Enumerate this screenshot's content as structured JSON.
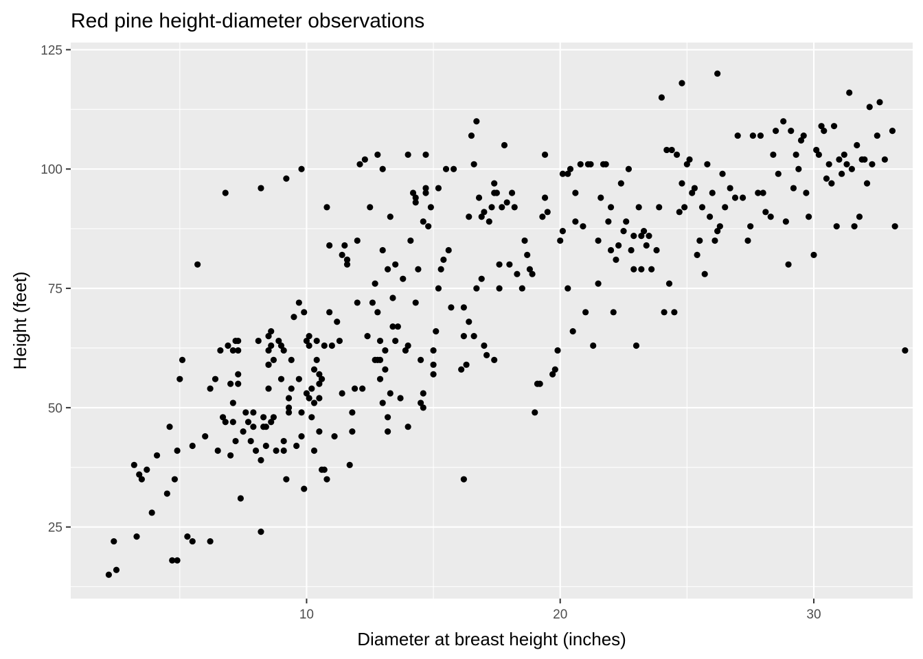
{
  "chart_data": {
    "type": "scatter",
    "title": "Red pine height-diameter observations",
    "xlabel": "Diameter at breast height (inches)",
    "ylabel": "Height (feet)",
    "xlim": [
      0.7,
      33.9
    ],
    "ylim": [
      10,
      126.5
    ],
    "x_ticks": [
      10,
      20,
      30
    ],
    "y_ticks": [
      25,
      50,
      75,
      100,
      125
    ],
    "grid": true,
    "legend": "none",
    "colors": {
      "panel": "#ebebeb",
      "point": "#000000",
      "grid": "#ffffff",
      "tick_text": "#4d4d4d"
    },
    "points": [
      [
        2.2,
        15
      ],
      [
        2.5,
        16
      ],
      [
        2.4,
        22
      ],
      [
        3.3,
        23
      ],
      [
        3.2,
        38
      ],
      [
        3.4,
        36
      ],
      [
        3.5,
        35
      ],
      [
        3.7,
        37
      ],
      [
        3.9,
        28
      ],
      [
        4.1,
        40
      ],
      [
        4.5,
        32
      ],
      [
        4.6,
        46
      ],
      [
        4.7,
        18
      ],
      [
        4.8,
        35
      ],
      [
        4.9,
        18
      ],
      [
        4.9,
        41
      ],
      [
        5.0,
        56
      ],
      [
        5.1,
        60
      ],
      [
        5.3,
        23
      ],
      [
        5.5,
        22
      ],
      [
        5.5,
        42
      ],
      [
        5.7,
        80
      ],
      [
        6.0,
        44
      ],
      [
        6.2,
        22
      ],
      [
        6.2,
        54
      ],
      [
        6.4,
        56
      ],
      [
        6.5,
        41
      ],
      [
        6.6,
        62
      ],
      [
        6.7,
        48
      ],
      [
        6.8,
        47
      ],
      [
        6.9,
        63
      ],
      [
        6.8,
        95
      ],
      [
        7.0,
        55
      ],
      [
        7.0,
        40
      ],
      [
        7.1,
        62
      ],
      [
        7.1,
        51
      ],
      [
        7.2,
        64
      ],
      [
        7.1,
        47
      ],
      [
        7.2,
        43
      ],
      [
        7.3,
        64
      ],
      [
        7.3,
        62
      ],
      [
        7.3,
        55
      ],
      [
        7.3,
        57
      ],
      [
        7.4,
        31
      ],
      [
        7.5,
        45
      ],
      [
        7.6,
        49
      ],
      [
        7.7,
        47
      ],
      [
        7.8,
        43
      ],
      [
        7.9,
        49
      ],
      [
        7.9,
        46
      ],
      [
        8.0,
        41
      ],
      [
        8.1,
        64
      ],
      [
        8.2,
        39
      ],
      [
        8.2,
        24
      ],
      [
        8.2,
        96
      ],
      [
        8.3,
        48
      ],
      [
        8.3,
        46
      ],
      [
        8.4,
        42
      ],
      [
        8.4,
        46
      ],
      [
        8.5,
        65
      ],
      [
        8.5,
        62
      ],
      [
        8.5,
        59
      ],
      [
        8.5,
        59
      ],
      [
        8.5,
        54
      ],
      [
        8.6,
        63
      ],
      [
        8.6,
        66
      ],
      [
        8.7,
        60
      ],
      [
        8.6,
        47
      ],
      [
        8.7,
        48
      ],
      [
        8.8,
        41
      ],
      [
        8.9,
        64
      ],
      [
        9.0,
        63
      ],
      [
        9.0,
        56
      ],
      [
        9.1,
        41
      ],
      [
        9.1,
        43
      ],
      [
        9.1,
        62
      ],
      [
        9.2,
        98
      ],
      [
        9.2,
        35
      ],
      [
        9.3,
        52
      ],
      [
        9.3,
        49
      ],
      [
        9.3,
        50
      ],
      [
        9.4,
        54
      ],
      [
        9.4,
        60
      ],
      [
        9.5,
        69
      ],
      [
        9.6,
        42
      ],
      [
        9.7,
        56
      ],
      [
        9.7,
        72
      ],
      [
        9.8,
        100
      ],
      [
        9.8,
        44
      ],
      [
        9.8,
        49
      ],
      [
        9.9,
        70
      ],
      [
        9.9,
        33
      ],
      [
        10.0,
        64
      ],
      [
        10.0,
        53
      ],
      [
        10.1,
        65
      ],
      [
        10.1,
        63
      ],
      [
        10.1,
        52
      ],
      [
        10.2,
        54
      ],
      [
        10.2,
        48
      ],
      [
        10.3,
        58
      ],
      [
        10.3,
        51
      ],
      [
        10.3,
        41
      ],
      [
        10.4,
        60
      ],
      [
        10.4,
        64
      ],
      [
        10.5,
        55
      ],
      [
        10.5,
        57
      ],
      [
        10.5,
        52
      ],
      [
        10.5,
        45
      ],
      [
        10.6,
        37
      ],
      [
        10.6,
        56
      ],
      [
        10.7,
        63
      ],
      [
        10.7,
        37
      ],
      [
        10.8,
        35
      ],
      [
        10.8,
        92
      ],
      [
        10.9,
        70
      ],
      [
        10.9,
        84
      ],
      [
        11.0,
        63
      ],
      [
        11.1,
        44
      ],
      [
        11.2,
        68
      ],
      [
        11.3,
        64
      ],
      [
        11.4,
        82
      ],
      [
        11.4,
        53
      ],
      [
        11.5,
        84
      ],
      [
        11.6,
        80
      ],
      [
        11.6,
        81
      ],
      [
        11.6,
        81
      ],
      [
        11.7,
        38
      ],
      [
        11.8,
        45
      ],
      [
        11.8,
        49
      ],
      [
        11.9,
        54
      ],
      [
        12.0,
        72
      ],
      [
        12.0,
        85
      ],
      [
        12.1,
        101
      ],
      [
        12.2,
        54
      ],
      [
        12.3,
        102
      ],
      [
        12.4,
        65
      ],
      [
        12.5,
        92
      ],
      [
        12.6,
        72
      ],
      [
        12.7,
        60
      ],
      [
        12.7,
        76
      ],
      [
        12.8,
        103
      ],
      [
        12.8,
        60
      ],
      [
        12.8,
        70
      ],
      [
        12.9,
        64
      ],
      [
        12.9,
        60
      ],
      [
        12.9,
        56
      ],
      [
        13.0,
        51
      ],
      [
        13.0,
        83
      ],
      [
        13.0,
        100
      ],
      [
        13.1,
        58
      ],
      [
        13.1,
        62
      ],
      [
        13.2,
        79
      ],
      [
        13.2,
        48
      ],
      [
        13.2,
        45
      ],
      [
        13.3,
        90
      ],
      [
        13.3,
        53
      ],
      [
        13.4,
        67
      ],
      [
        13.4,
        73
      ],
      [
        13.5,
        64
      ],
      [
        13.5,
        80
      ],
      [
        13.6,
        67
      ],
      [
        13.7,
        52
      ],
      [
        13.8,
        77
      ],
      [
        13.9,
        62
      ],
      [
        14.0,
        103
      ],
      [
        14.0,
        63
      ],
      [
        14.0,
        46
      ],
      [
        14.1,
        85
      ],
      [
        14.2,
        95
      ],
      [
        14.3,
        72
      ],
      [
        14.3,
        94
      ],
      [
        14.3,
        93
      ],
      [
        14.4,
        79
      ],
      [
        14.5,
        51
      ],
      [
        14.5,
        60
      ],
      [
        14.6,
        53
      ],
      [
        14.6,
        89
      ],
      [
        14.6,
        50
      ],
      [
        14.7,
        103
      ],
      [
        14.7,
        95
      ],
      [
        14.7,
        96
      ],
      [
        14.8,
        88
      ],
      [
        14.9,
        92
      ],
      [
        15.0,
        57
      ],
      [
        15.0,
        59
      ],
      [
        15.0,
        62
      ],
      [
        15.1,
        66
      ],
      [
        15.2,
        75
      ],
      [
        15.2,
        96
      ],
      [
        15.3,
        79
      ],
      [
        15.4,
        81
      ],
      [
        15.5,
        100
      ],
      [
        15.6,
        83
      ],
      [
        15.7,
        71
      ],
      [
        15.8,
        100
      ],
      [
        16.1,
        58
      ],
      [
        16.2,
        71
      ],
      [
        16.2,
        65
      ],
      [
        16.2,
        35
      ],
      [
        16.3,
        59
      ],
      [
        16.4,
        90
      ],
      [
        16.4,
        68
      ],
      [
        16.5,
        107
      ],
      [
        16.6,
        65
      ],
      [
        16.6,
        101
      ],
      [
        16.7,
        75
      ],
      [
        16.7,
        110
      ],
      [
        16.8,
        94
      ],
      [
        16.9,
        77
      ],
      [
        16.9,
        90
      ],
      [
        17.0,
        91
      ],
      [
        17.0,
        63
      ],
      [
        17.1,
        61
      ],
      [
        17.2,
        89
      ],
      [
        17.3,
        92
      ],
      [
        17.4,
        60
      ],
      [
        17.4,
        95
      ],
      [
        17.4,
        97
      ],
      [
        17.5,
        95
      ],
      [
        17.6,
        80
      ],
      [
        17.6,
        75
      ],
      [
        17.7,
        92
      ],
      [
        17.8,
        105
      ],
      [
        17.9,
        93
      ],
      [
        18.0,
        80
      ],
      [
        18.1,
        95
      ],
      [
        18.2,
        92
      ],
      [
        18.3,
        78
      ],
      [
        18.5,
        75
      ],
      [
        18.6,
        85
      ],
      [
        18.7,
        82
      ],
      [
        18.8,
        79
      ],
      [
        18.9,
        78
      ],
      [
        19.0,
        49
      ],
      [
        19.1,
        55
      ],
      [
        19.2,
        55
      ],
      [
        19.3,
        90
      ],
      [
        19.4,
        103
      ],
      [
        19.4,
        94
      ],
      [
        19.5,
        91
      ],
      [
        19.7,
        57
      ],
      [
        19.8,
        58
      ],
      [
        19.9,
        62
      ],
      [
        20.0,
        85
      ],
      [
        20.1,
        99
      ],
      [
        20.1,
        87
      ],
      [
        20.3,
        75
      ],
      [
        20.3,
        99
      ],
      [
        20.4,
        100
      ],
      [
        20.5,
        66
      ],
      [
        20.6,
        89
      ],
      [
        20.6,
        95
      ],
      [
        20.8,
        101
      ],
      [
        20.9,
        88
      ],
      [
        21.0,
        70
      ],
      [
        21.1,
        101
      ],
      [
        21.2,
        101
      ],
      [
        21.3,
        63
      ],
      [
        21.5,
        76
      ],
      [
        21.5,
        85
      ],
      [
        21.6,
        94
      ],
      [
        21.7,
        101
      ],
      [
        21.8,
        101
      ],
      [
        21.9,
        89
      ],
      [
        22.0,
        83
      ],
      [
        22.0,
        92
      ],
      [
        22.1,
        70
      ],
      [
        22.2,
        81
      ],
      [
        22.3,
        84
      ],
      [
        22.4,
        97
      ],
      [
        22.5,
        87
      ],
      [
        22.6,
        89
      ],
      [
        22.7,
        100
      ],
      [
        22.8,
        83
      ],
      [
        22.9,
        79
      ],
      [
        22.9,
        86
      ],
      [
        23.0,
        63
      ],
      [
        23.1,
        92
      ],
      [
        23.2,
        86
      ],
      [
        23.2,
        79
      ],
      [
        23.3,
        87
      ],
      [
        23.4,
        84
      ],
      [
        23.5,
        86
      ],
      [
        23.6,
        79
      ],
      [
        23.8,
        83
      ],
      [
        23.9,
        92
      ],
      [
        24.0,
        115
      ],
      [
        24.1,
        70
      ],
      [
        24.2,
        104
      ],
      [
        24.3,
        76
      ],
      [
        24.4,
        104
      ],
      [
        24.5,
        70
      ],
      [
        24.6,
        103
      ],
      [
        24.7,
        91
      ],
      [
        24.8,
        97
      ],
      [
        24.8,
        118
      ],
      [
        24.9,
        92
      ],
      [
        25.0,
        101
      ],
      [
        25.1,
        102
      ],
      [
        25.2,
        95
      ],
      [
        25.3,
        96
      ],
      [
        25.4,
        82
      ],
      [
        25.5,
        85
      ],
      [
        25.6,
        92
      ],
      [
        25.7,
        78
      ],
      [
        25.8,
        101
      ],
      [
        25.9,
        90
      ],
      [
        26.0,
        95
      ],
      [
        26.1,
        85
      ],
      [
        26.2,
        87
      ],
      [
        26.2,
        120
      ],
      [
        26.3,
        88
      ],
      [
        26.4,
        99
      ],
      [
        26.5,
        92
      ],
      [
        26.7,
        96
      ],
      [
        26.9,
        94
      ],
      [
        27.0,
        107
      ],
      [
        27.2,
        94
      ],
      [
        27.4,
        85
      ],
      [
        27.5,
        88
      ],
      [
        27.6,
        107
      ],
      [
        27.8,
        95
      ],
      [
        27.9,
        107
      ],
      [
        28.0,
        95
      ],
      [
        28.1,
        91
      ],
      [
        28.3,
        90
      ],
      [
        28.4,
        103
      ],
      [
        28.5,
        108
      ],
      [
        28.6,
        99
      ],
      [
        28.8,
        110
      ],
      [
        28.9,
        89
      ],
      [
        29.0,
        80
      ],
      [
        29.1,
        108
      ],
      [
        29.2,
        96
      ],
      [
        29.3,
        103
      ],
      [
        29.4,
        100
      ],
      [
        29.5,
        106
      ],
      [
        29.6,
        107
      ],
      [
        29.7,
        95
      ],
      [
        29.8,
        90
      ],
      [
        30.0,
        82
      ],
      [
        30.1,
        104
      ],
      [
        30.2,
        103
      ],
      [
        30.3,
        109
      ],
      [
        30.4,
        108
      ],
      [
        30.5,
        98
      ],
      [
        30.6,
        101
      ],
      [
        30.7,
        97
      ],
      [
        30.8,
        109
      ],
      [
        30.9,
        88
      ],
      [
        31.0,
        102
      ],
      [
        31.1,
        99
      ],
      [
        31.2,
        103
      ],
      [
        31.3,
        101
      ],
      [
        31.4,
        116
      ],
      [
        31.5,
        100
      ],
      [
        31.6,
        88
      ],
      [
        31.7,
        105
      ],
      [
        31.8,
        90
      ],
      [
        31.9,
        102
      ],
      [
        32.0,
        102
      ],
      [
        32.1,
        97
      ],
      [
        32.2,
        113
      ],
      [
        32.3,
        101
      ],
      [
        32.5,
        107
      ],
      [
        32.6,
        114
      ],
      [
        32.8,
        102
      ],
      [
        33.1,
        108
      ],
      [
        33.2,
        88
      ],
      [
        33.6,
        62
      ]
    ]
  }
}
